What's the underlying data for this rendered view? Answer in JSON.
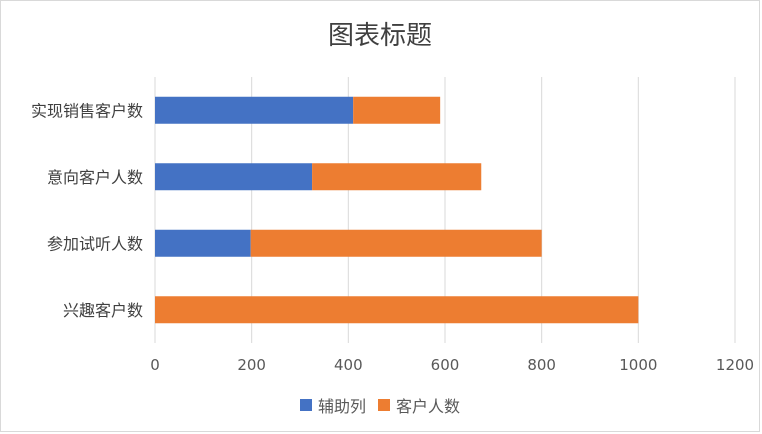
{
  "chart_data": {
    "type": "bar",
    "orientation": "horizontal",
    "stacked": true,
    "title": "图表标题",
    "categories": [
      "实现销售客户数",
      "意向客户人数",
      "参加试听人数",
      "兴趣客户数"
    ],
    "series": [
      {
        "name": "辅助列",
        "values": [
          410,
          325,
          198,
          0
        ],
        "color": "#4472C4"
      },
      {
        "name": "客户人数",
        "values": [
          180,
          350,
          602,
          1000
        ],
        "color": "#ED7D31"
      }
    ],
    "xlim": [
      0,
      1200
    ],
    "xticks": [
      0,
      200,
      400,
      600,
      800,
      1000,
      1200
    ],
    "xtick_labels": [
      "0",
      "200",
      "400",
      "600",
      "800",
      "1000",
      "1200"
    ],
    "grid": true,
    "legend_position": "bottom"
  }
}
